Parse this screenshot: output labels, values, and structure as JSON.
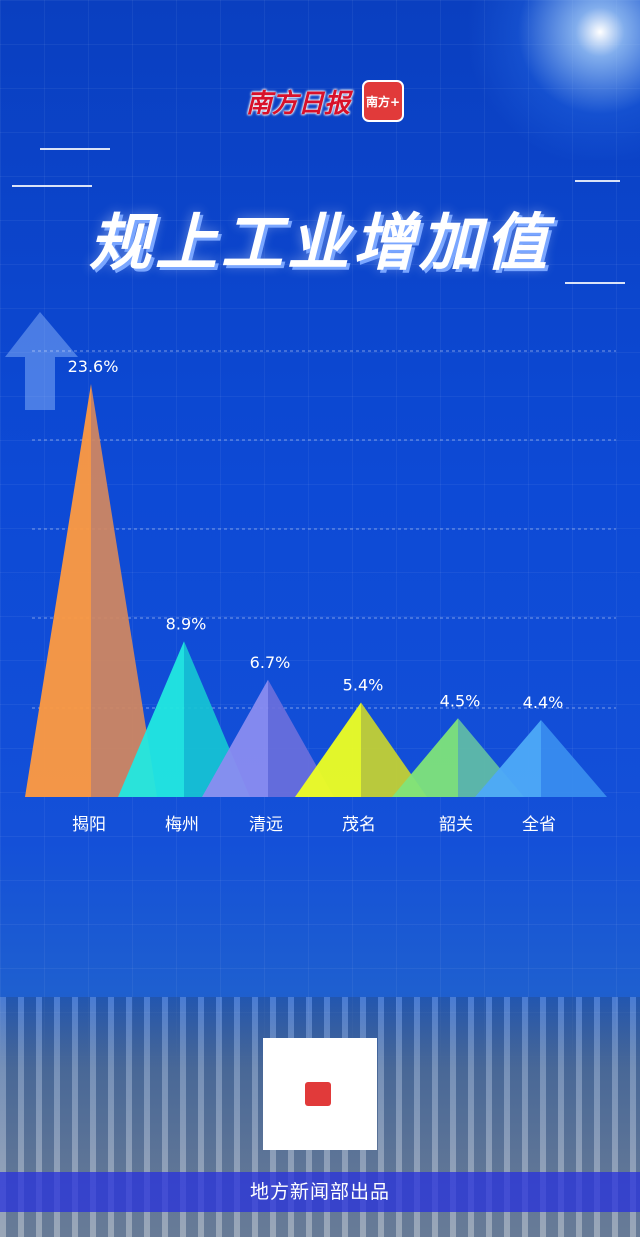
{
  "brand": {
    "name": "南方日报",
    "app_logo_text": "南方+"
  },
  "title": "规上工业增加值",
  "chart_data": {
    "type": "bar",
    "title": "规上工业增加值",
    "categories": [
      "揭阳",
      "梅州",
      "清远",
      "茂名",
      "韶关",
      "全省"
    ],
    "values": [
      23.6,
      8.9,
      6.7,
      5.4,
      4.5,
      4.4
    ],
    "data_labels": [
      "23.6%",
      "8.9%",
      "6.7%",
      "5.4%",
      "4.5%",
      "4.4%"
    ],
    "unit": "%",
    "mark_shape": "triangle",
    "grid": "dashed horizontal",
    "colors": [
      [
        "#ff9a40",
        "#d4885e"
      ],
      [
        "#22e8e0",
        "#16c4d4"
      ],
      [
        "#8a8cf0",
        "#6a6fdc"
      ],
      [
        "#eeff22",
        "#c8d430"
      ],
      [
        "#80e47a",
        "#62bea6"
      ],
      [
        "#4eaaf8",
        "#3a8ef0"
      ]
    ]
  },
  "footer": {
    "credit": "地方新闻部出品"
  }
}
